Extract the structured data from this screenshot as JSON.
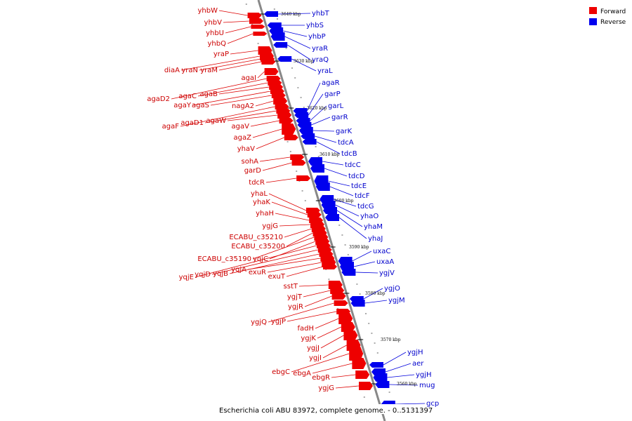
{
  "caption": "Escherichia coli ABU 83972, complete genome. - 0..5131397",
  "legend": [
    {
      "label": "Forward",
      "color": "#ee0000"
    },
    {
      "label": "Reverse",
      "color": "#0000ee"
    }
  ],
  "colors": {
    "forward": "#ee0000",
    "reverse": "#0000ee",
    "forward_line": "#dd0000",
    "reverse_line": "#0000dd",
    "backbone": "#888888"
  },
  "ticks": [
    "3640 kbp",
    "3630 kbp",
    "3620 kbp",
    "3610 kbp",
    "3600 kbp",
    "3590 kbp",
    "3580 kbp",
    "3570 kbp",
    "3560 kbp"
  ],
  "forward_genes": [
    "yhbW",
    "yhbV",
    "yhbU",
    "yhbQ",
    "yraP",
    "diaA",
    "yraN",
    "yraM",
    "agaI",
    "agaD2",
    "agaC",
    "agaB",
    "agaY",
    "agaS",
    "nagA2",
    "agaF",
    "agaD1",
    "agaW",
    "agaV",
    "agaZ",
    "yhaV",
    "sohA",
    "garD",
    "tdcR",
    "yhaL",
    "yhaK",
    "yhaH",
    "ygjG",
    "ECABU_c35210",
    "ECABU_c35200",
    "ECABU_c35190",
    "yqjC",
    "yqjE",
    "yqjD",
    "yqjB",
    "yqjA",
    "exuR",
    "exuT",
    "sstT",
    "ygjT",
    "ygjR",
    "ygjQ",
    "ygjP",
    "fadH",
    "ygjK",
    "ygjJ",
    "ygjI",
    "ebgC",
    "ebgA",
    "ebgR",
    "ygjG"
  ],
  "reverse_genes": [
    "yhbT",
    "yhbS",
    "yhbP",
    "yraR",
    "yraQ",
    "yraL",
    "agaR",
    "garP",
    "garL",
    "garR",
    "garK",
    "tdcA",
    "tdcB",
    "tdcC",
    "tdcD",
    "tdcE",
    "tdcF",
    "tdcG",
    "yhaO",
    "yhaM",
    "yhaJ",
    "uxaC",
    "uxaA",
    "ygjV",
    "ygjO",
    "ygjM",
    "ygjH",
    "aer",
    "ygjH",
    "mug",
    "gcp"
  ]
}
